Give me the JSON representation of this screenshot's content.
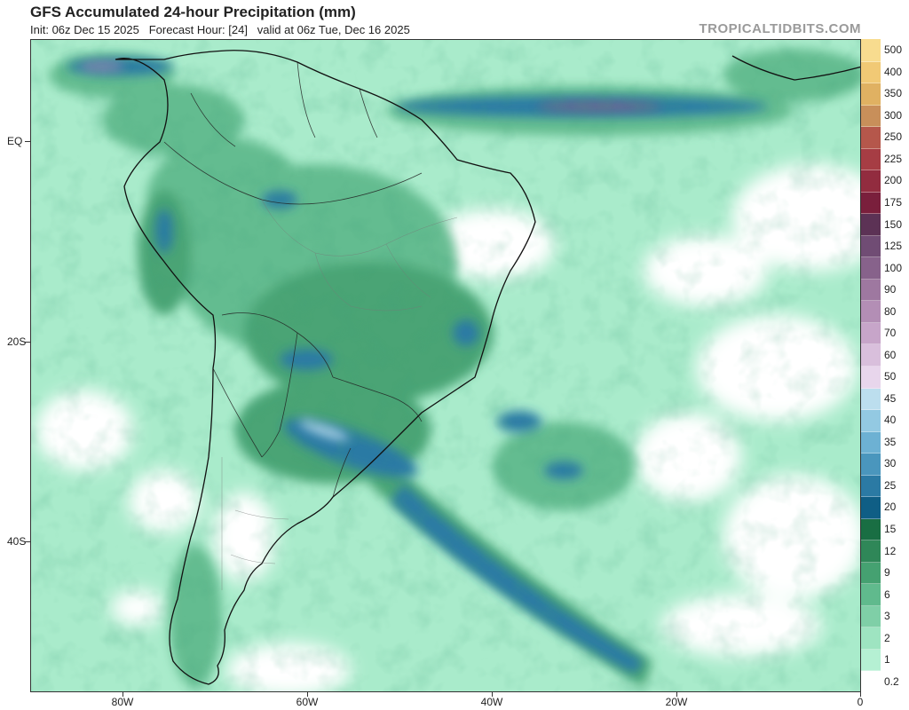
{
  "header": {
    "title": "GFS Accumulated 24-hour Precipitation (mm)",
    "subtitle": "Init: 06z Dec 15 2025   Forecast Hour: [24]   valid at 06z Tue, Dec 16 2025",
    "brand": "TROPICALTIDBITS.COM"
  },
  "axes": {
    "y_labels": [
      "EQ",
      "20S",
      "40S"
    ],
    "x_labels": [
      "80W",
      "60W",
      "40W",
      "20W",
      "0"
    ]
  },
  "legend": {
    "levels": [
      "0.2",
      "1",
      "2",
      "3",
      "6",
      "9",
      "12",
      "15",
      "20",
      "25",
      "30",
      "35",
      "40",
      "45",
      "50",
      "60",
      "70",
      "80",
      "90",
      "100",
      "125",
      "150",
      "175",
      "200",
      "225",
      "250",
      "300",
      "350",
      "400",
      "500"
    ],
    "colors": [
      "#ffffff",
      "#b5f0d3",
      "#9ee4c1",
      "#7fcfa7",
      "#60ba8d",
      "#45a171",
      "#2f8758",
      "#196e43",
      "#0f5e85",
      "#2b7aa4",
      "#4a96bd",
      "#6db1d3",
      "#93c9e2",
      "#bcdeee",
      "#e8d6ec",
      "#d9bfdc",
      "#c7a5c9",
      "#b38eb5",
      "#9e78a0",
      "#87628b",
      "#704c74",
      "#5c3255",
      "#7a1f3c",
      "#922c3f",
      "#a63d44",
      "#b5574b",
      "#c88f5a",
      "#e0b162",
      "#f1c975",
      "#f8dc8f"
    ]
  }
}
